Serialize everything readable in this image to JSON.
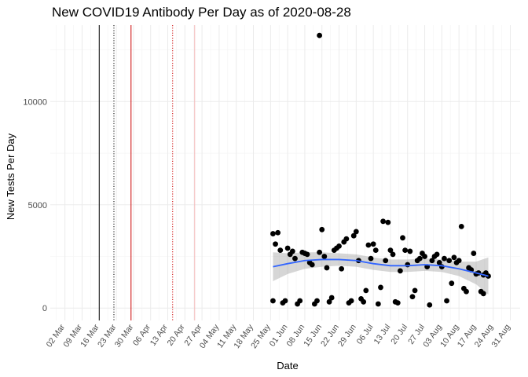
{
  "chart_data": {
    "type": "scatter",
    "title": "New COVID19 Antibody Per Day as of 2020-08-28",
    "xlabel": "Date",
    "ylabel": "New Tests Per Day",
    "xlim": [
      "2020-02-25",
      "2020-09-04"
    ],
    "ylim": [
      -600,
      13700
    ],
    "x_ticks": [
      "2020-03-02",
      "2020-03-09",
      "2020-03-16",
      "2020-03-23",
      "2020-03-30",
      "2020-04-06",
      "2020-04-13",
      "2020-04-20",
      "2020-04-27",
      "2020-05-04",
      "2020-05-11",
      "2020-05-18",
      "2020-05-25",
      "2020-06-01",
      "2020-06-08",
      "2020-06-15",
      "2020-06-22",
      "2020-06-29",
      "2020-07-06",
      "2020-07-13",
      "2020-07-20",
      "2020-07-27",
      "2020-08-03",
      "2020-08-10",
      "2020-08-17",
      "2020-08-24",
      "2020-08-31"
    ],
    "x_tick_labels": [
      "02 Mar",
      "09 Mar",
      "16 Mar",
      "23 Mar",
      "30 Mar",
      "06 Apr",
      "13 Apr",
      "20 Apr",
      "27 Apr",
      "04 May",
      "11 May",
      "18 May",
      "25 May",
      "01 Jun",
      "08 Jun",
      "15 Jun",
      "22 Jun",
      "29 Jun",
      "06 Jul",
      "13 Jul",
      "20 Jul",
      "27 Jul",
      "03 Aug",
      "10 Aug",
      "17 Aug",
      "24 Aug",
      "31 Aug"
    ],
    "y_ticks": [
      0,
      5000,
      10000
    ],
    "y_tick_labels": [
      "0",
      "5000",
      "10000"
    ],
    "grid": true,
    "legend": "none",
    "vertical_lines": [
      {
        "date": "2020-03-16",
        "color": "#000000",
        "style": "solid"
      },
      {
        "date": "2020-03-22",
        "color": "#000000",
        "style": "dotted"
      },
      {
        "date": "2020-03-29",
        "color": "#cc0000",
        "style": "solid"
      },
      {
        "date": "2020-04-15",
        "color": "#cc0000",
        "style": "dotted"
      },
      {
        "date": "2020-04-24",
        "color": "#f2b8b8",
        "style": "solid"
      }
    ],
    "series": [
      {
        "type": "scatter",
        "color": "#000000",
        "points": [
          {
            "x": "2020-05-26",
            "y": 350
          },
          {
            "x": "2020-05-26",
            "y": 3600
          },
          {
            "x": "2020-05-27",
            "y": 3100
          },
          {
            "x": "2020-05-28",
            "y": 3650
          },
          {
            "x": "2020-05-29",
            "y": 2800
          },
          {
            "x": "2020-05-30",
            "y": 250
          },
          {
            "x": "2020-05-31",
            "y": 350
          },
          {
            "x": "2020-06-01",
            "y": 2900
          },
          {
            "x": "2020-06-02",
            "y": 2600
          },
          {
            "x": "2020-06-03",
            "y": 2750
          },
          {
            "x": "2020-06-04",
            "y": 2400
          },
          {
            "x": "2020-06-05",
            "y": 200
          },
          {
            "x": "2020-06-06",
            "y": 350
          },
          {
            "x": "2020-06-07",
            "y": 2700
          },
          {
            "x": "2020-06-08",
            "y": 2650
          },
          {
            "x": "2020-06-09",
            "y": 2600
          },
          {
            "x": "2020-06-10",
            "y": 2200
          },
          {
            "x": "2020-06-11",
            "y": 2100
          },
          {
            "x": "2020-06-12",
            "y": 200
          },
          {
            "x": "2020-06-13",
            "y": 350
          },
          {
            "x": "2020-06-14",
            "y": 2700
          },
          {
            "x": "2020-06-14",
            "y": 13200
          },
          {
            "x": "2020-06-15",
            "y": 3800
          },
          {
            "x": "2020-06-16",
            "y": 2500
          },
          {
            "x": "2020-06-17",
            "y": 1950
          },
          {
            "x": "2020-06-18",
            "y": 300
          },
          {
            "x": "2020-06-19",
            "y": 500
          },
          {
            "x": "2020-06-20",
            "y": 2800
          },
          {
            "x": "2020-06-21",
            "y": 2900
          },
          {
            "x": "2020-06-22",
            "y": 3000
          },
          {
            "x": "2020-06-23",
            "y": 1900
          },
          {
            "x": "2020-06-24",
            "y": 3200
          },
          {
            "x": "2020-06-25",
            "y": 3350
          },
          {
            "x": "2020-06-26",
            "y": 250
          },
          {
            "x": "2020-06-27",
            "y": 350
          },
          {
            "x": "2020-06-28",
            "y": 3500
          },
          {
            "x": "2020-06-29",
            "y": 3700
          },
          {
            "x": "2020-06-30",
            "y": 2300
          },
          {
            "x": "2020-07-01",
            "y": 450
          },
          {
            "x": "2020-07-02",
            "y": 300
          },
          {
            "x": "2020-07-03",
            "y": 850
          },
          {
            "x": "2020-07-04",
            "y": 3050
          },
          {
            "x": "2020-07-05",
            "y": 2400
          },
          {
            "x": "2020-07-06",
            "y": 3100
          },
          {
            "x": "2020-07-07",
            "y": 2800
          },
          {
            "x": "2020-07-08",
            "y": 200
          },
          {
            "x": "2020-07-09",
            "y": 1000
          },
          {
            "x": "2020-07-10",
            "y": 4200
          },
          {
            "x": "2020-07-11",
            "y": 2300
          },
          {
            "x": "2020-07-12",
            "y": 4150
          },
          {
            "x": "2020-07-13",
            "y": 2800
          },
          {
            "x": "2020-07-14",
            "y": 2600
          },
          {
            "x": "2020-07-15",
            "y": 300
          },
          {
            "x": "2020-07-16",
            "y": 250
          },
          {
            "x": "2020-07-17",
            "y": 1800
          },
          {
            "x": "2020-07-18",
            "y": 3400
          },
          {
            "x": "2020-07-19",
            "y": 2800
          },
          {
            "x": "2020-07-20",
            "y": 2100
          },
          {
            "x": "2020-07-21",
            "y": 2750
          },
          {
            "x": "2020-07-22",
            "y": 550
          },
          {
            "x": "2020-07-23",
            "y": 850
          },
          {
            "x": "2020-07-24",
            "y": 2300
          },
          {
            "x": "2020-07-25",
            "y": 2400
          },
          {
            "x": "2020-07-26",
            "y": 2650
          },
          {
            "x": "2020-07-27",
            "y": 2500
          },
          {
            "x": "2020-07-28",
            "y": 2000
          },
          {
            "x": "2020-07-29",
            "y": 150
          },
          {
            "x": "2020-07-30",
            "y": 2300
          },
          {
            "x": "2020-07-31",
            "y": 2500
          },
          {
            "x": "2020-08-01",
            "y": 2600
          },
          {
            "x": "2020-08-02",
            "y": 2200
          },
          {
            "x": "2020-08-03",
            "y": 2000
          },
          {
            "x": "2020-08-04",
            "y": 2400
          },
          {
            "x": "2020-08-05",
            "y": 350
          },
          {
            "x": "2020-08-06",
            "y": 2300
          },
          {
            "x": "2020-08-07",
            "y": 1200
          },
          {
            "x": "2020-08-08",
            "y": 2450
          },
          {
            "x": "2020-08-09",
            "y": 2200
          },
          {
            "x": "2020-08-10",
            "y": 2300
          },
          {
            "x": "2020-08-11",
            "y": 3950
          },
          {
            "x": "2020-08-12",
            "y": 950
          },
          {
            "x": "2020-08-13",
            "y": 800
          },
          {
            "x": "2020-08-14",
            "y": 1950
          },
          {
            "x": "2020-08-15",
            "y": 1850
          },
          {
            "x": "2020-08-16",
            "y": 2650
          },
          {
            "x": "2020-08-17",
            "y": 1650
          },
          {
            "x": "2020-08-18",
            "y": 1700
          },
          {
            "x": "2020-08-19",
            "y": 800
          },
          {
            "x": "2020-08-20",
            "y": 1600
          },
          {
            "x": "2020-08-20",
            "y": 700
          },
          {
            "x": "2020-08-21",
            "y": 1700
          },
          {
            "x": "2020-08-22",
            "y": 1550
          }
        ]
      },
      {
        "type": "smooth",
        "color": "#3366ff",
        "band_color": "#999999",
        "points": [
          {
            "x": "2020-05-26",
            "y": 2000,
            "lo": 1300,
            "hi": 2700
          },
          {
            "x": "2020-06-01",
            "y": 2150,
            "lo": 1650,
            "hi": 2650
          },
          {
            "x": "2020-06-08",
            "y": 2300,
            "lo": 1900,
            "hi": 2700
          },
          {
            "x": "2020-06-15",
            "y": 2350,
            "lo": 2000,
            "hi": 2700
          },
          {
            "x": "2020-06-22",
            "y": 2350,
            "lo": 2050,
            "hi": 2650
          },
          {
            "x": "2020-06-29",
            "y": 2300,
            "lo": 2000,
            "hi": 2600
          },
          {
            "x": "2020-07-06",
            "y": 2150,
            "lo": 1850,
            "hi": 2450
          },
          {
            "x": "2020-07-13",
            "y": 2050,
            "lo": 1750,
            "hi": 2350
          },
          {
            "x": "2020-07-20",
            "y": 2050,
            "lo": 1750,
            "hi": 2350
          },
          {
            "x": "2020-07-27",
            "y": 2100,
            "lo": 1800,
            "hi": 2400
          },
          {
            "x": "2020-08-03",
            "y": 2050,
            "lo": 1750,
            "hi": 2350
          },
          {
            "x": "2020-08-10",
            "y": 1900,
            "lo": 1550,
            "hi": 2250
          },
          {
            "x": "2020-08-17",
            "y": 1700,
            "lo": 1150,
            "hi": 2250
          },
          {
            "x": "2020-08-22",
            "y": 1550,
            "lo": 650,
            "hi": 2450
          }
        ]
      }
    ]
  }
}
